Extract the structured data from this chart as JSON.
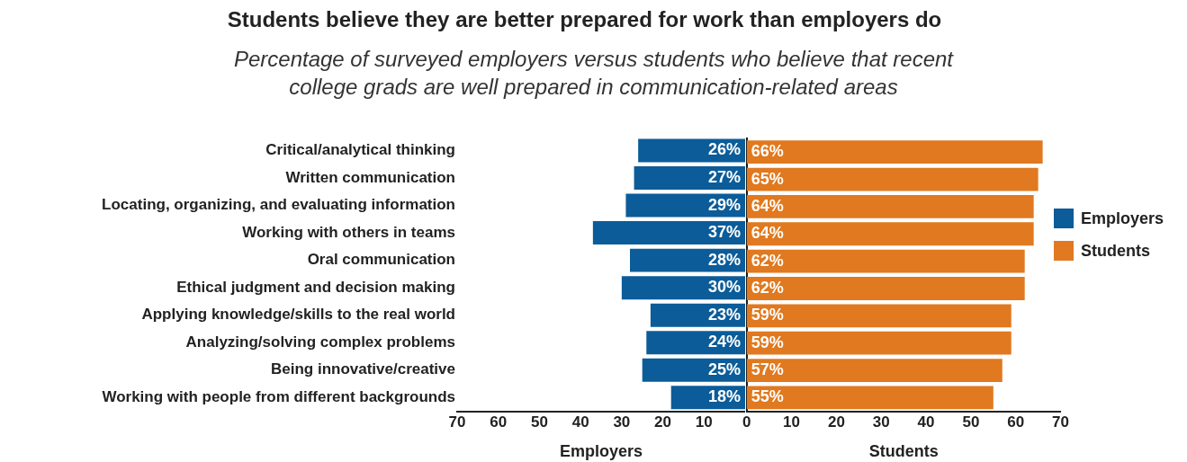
{
  "chart_data": [
    {
      "type": "bar",
      "orientation": "horizontal",
      "title": "Students believe they are better prepared for work than employers do",
      "subtitle": "Percentage of surveyed employers versus students who believe that recent college grads are well prepared in communication-related areas",
      "categories": [
        "Critical/analytical thinking",
        "Written communication",
        "Locating, organizing, and evaluating information",
        "Working with others in teams",
        "Oral communication",
        "Ethical judgment and decision making",
        "Applying knowledge/skills to the real world",
        "Analyzing/solving complex problems",
        "Being innovative/creative",
        "Working with people from different backgrounds"
      ],
      "series": [
        {
          "name": "Employers",
          "color": "#0b5c99",
          "values": [
            26,
            27,
            29,
            37,
            28,
            30,
            23,
            24,
            25,
            18
          ],
          "value_labels": [
            "26%",
            "27%",
            "29%",
            "37%",
            "28%",
            "30%",
            "23%",
            "24%",
            "25%",
            "18%"
          ]
        }
      ],
      "xlim": [
        70,
        0
      ],
      "xticks": [
        70,
        60,
        50,
        40,
        30,
        20,
        10
      ],
      "xlabel": "Employers",
      "legend": "right",
      "grid": false
    },
    {
      "type": "bar",
      "orientation": "horizontal",
      "categories": [
        null,
        null,
        null,
        null,
        null,
        null,
        null,
        null,
        null,
        null
      ],
      "series": [
        {
          "name": "Students",
          "color": "#e0791f",
          "values": [
            66,
            65,
            64,
            64,
            62,
            62,
            59,
            59,
            57,
            55
          ],
          "value_labels": [
            "66%",
            "65%",
            "64%",
            "64%",
            "62%",
            "62%",
            "59%",
            "59%",
            "57%",
            "55%"
          ]
        }
      ],
      "xlim": [
        0,
        70
      ],
      "xticks": [
        0,
        10,
        20,
        30,
        40,
        50,
        60,
        70
      ],
      "xlabel": "Students",
      "tick_labels": "x",
      "legend": "right",
      "grid": false
    }
  ]
}
